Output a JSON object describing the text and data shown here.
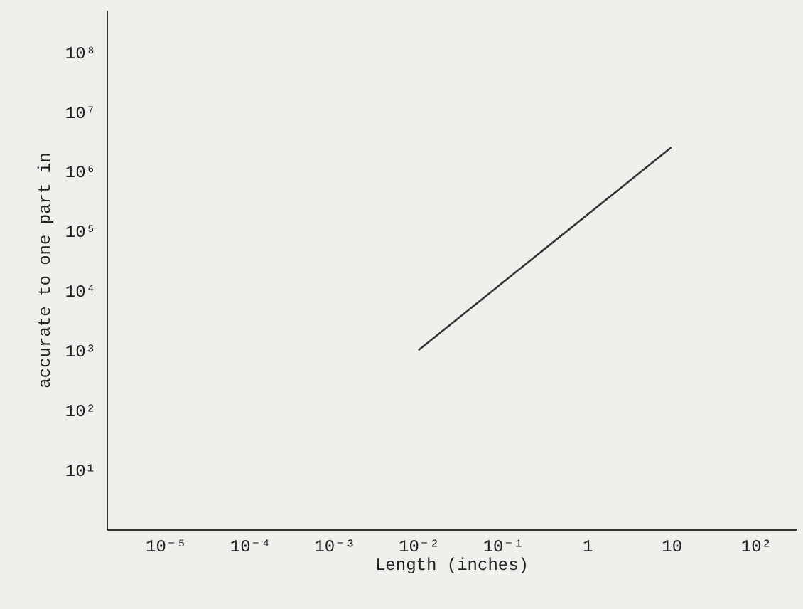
{
  "chart_data": {
    "type": "line",
    "xlabel": "Length (inches)",
    "ylabel": "accurate to one part in",
    "x": [
      0.01,
      10
    ],
    "series": [
      {
        "color": "#333333",
        "values": [
          1000,
          2500000
        ]
      }
    ],
    "log": "xy",
    "grid": false,
    "marker": "none",
    "line_style": "solid",
    "xlim": [
      2e-06,
      300
    ],
    "ylim": [
      1,
      500000000
    ],
    "xticks": [
      {
        "value": 1e-05,
        "label": "10⁻⁵"
      },
      {
        "value": 0.0001,
        "label": "10⁻⁴"
      },
      {
        "value": 0.001,
        "label": "10⁻³"
      },
      {
        "value": 0.01,
        "label": "10⁻²"
      },
      {
        "value": 0.1,
        "label": "10⁻¹"
      },
      1,
      10,
      {
        "value": 100,
        "label": "10²"
      }
    ],
    "yticks": [
      {
        "value": 10,
        "label": "10¹"
      },
      {
        "value": 100,
        "label": "10²"
      },
      {
        "value": 1000,
        "label": "10³"
      },
      {
        "value": 10000,
        "label": "10⁴"
      },
      {
        "value": 100000,
        "label": "10⁵"
      },
      {
        "value": 1000000,
        "label": "10⁶"
      },
      {
        "value": 10000000,
        "label": "10⁷"
      },
      {
        "value": 100000000,
        "label": "10⁸"
      }
    ]
  }
}
